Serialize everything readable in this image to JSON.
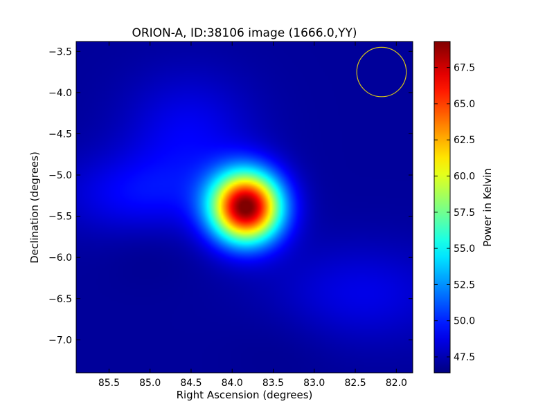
{
  "chart_data": {
    "type": "heatmap",
    "title": "ORION-A, ID:38106 image (1666.0,YY)",
    "xlabel": "Right Ascension (degrees)",
    "ylabel": "Declination (degrees)",
    "colorbar_label": "Power in Kelvin",
    "colormap": "jet",
    "xlim": [
      85.9,
      81.8
    ],
    "ylim": [
      -7.4,
      -3.38
    ],
    "x_ticks": [
      85.5,
      85.0,
      84.5,
      84.0,
      83.5,
      83.0,
      82.5,
      82.0
    ],
    "x_tick_labels": [
      "85.5",
      "85.0",
      "84.5",
      "84.0",
      "83.5",
      "83.0",
      "82.5",
      "82.0"
    ],
    "y_ticks": [
      -3.5,
      -4.0,
      -4.5,
      -5.0,
      -5.5,
      -6.0,
      -6.5,
      -7.0
    ],
    "y_tick_labels": [
      "−3.5",
      "−4.0",
      "−4.5",
      "−5.0",
      "−5.5",
      "−6.0",
      "−6.5",
      "−7.0"
    ],
    "color_range": [
      46.4,
      69.3
    ],
    "colorbar_ticks": [
      47.5,
      50.0,
      52.5,
      55.0,
      57.5,
      60.0,
      62.5,
      65.0,
      67.5
    ],
    "colorbar_tick_labels": [
      "47.5",
      "50.0",
      "52.5",
      "55.0",
      "57.5",
      "60.0",
      "62.5",
      "65.0",
      "67.5"
    ],
    "background_level": 47.0,
    "peak": {
      "ra": 83.83,
      "dec": -5.39,
      "value": 69.3,
      "sigma_deg": 0.3
    },
    "extended_emission": {
      "description_level": 49.5
    },
    "beam": {
      "ra": 82.18,
      "dec": -3.75,
      "radius_deg": 0.3,
      "color": "#d4c21a"
    }
  }
}
